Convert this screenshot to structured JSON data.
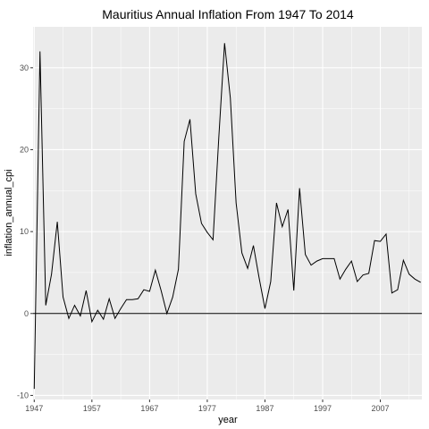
{
  "chart_data": {
    "type": "line",
    "title": "Mauritius Annual Inflation From 1947 To 2014",
    "xlabel": "year",
    "ylabel": "inflation_annual_cpi",
    "xlim": [
      1946.8,
      2014.2
    ],
    "ylim": [
      -10.5,
      35
    ],
    "x_ticks": [
      1947,
      1957,
      1967,
      1977,
      1987,
      1997,
      2007
    ],
    "y_ticks": [
      -10,
      0,
      10,
      20,
      30
    ],
    "x_tick_labels": [
      "1947",
      "1957",
      "1967",
      "1977",
      "1987",
      "1997",
      "2007"
    ],
    "y_tick_labels": [
      "-10",
      "0",
      "10",
      "20",
      "30"
    ],
    "reference_line_y": 0,
    "grid": true,
    "colors": {
      "panel": "#ebebeb",
      "grid": "#ffffff",
      "line": "#000000",
      "ticks": "#4d4d4d"
    },
    "series": [
      {
        "x": [
          1947,
          1948,
          1949,
          1950,
          1951,
          1952,
          1953,
          1954,
          1955,
          1956,
          1957,
          1958,
          1959,
          1960,
          1961,
          1962,
          1963,
          1964,
          1965,
          1966,
          1967,
          1968,
          1969,
          1970,
          1971,
          1972,
          1973,
          1974,
          1975,
          1976,
          1977,
          1978,
          1979,
          1980,
          1981,
          1982,
          1983,
          1984,
          1985,
          1986,
          1987,
          1988,
          1989,
          1990,
          1991,
          1992,
          1993,
          1994,
          1995,
          1996,
          1997,
          1998,
          1999,
          2000,
          2001,
          2002,
          2003,
          2004,
          2005,
          2006,
          2007,
          2008,
          2009,
          2010,
          2011,
          2012,
          2013,
          2014
        ],
        "values": [
          -9.2,
          32.0,
          1.0,
          4.8,
          11.2,
          2.0,
          -0.6,
          1.0,
          -0.3,
          2.8,
          -1.0,
          0.4,
          -0.7,
          1.8,
          -0.6,
          0.6,
          1.7,
          1.7,
          1.8,
          2.9,
          2.7,
          5.3,
          2.8,
          0.0,
          2.0,
          5.4,
          21.0,
          23.7,
          14.6,
          11.0,
          9.9,
          9.0,
          21.5,
          33.0,
          26.3,
          13.5,
          7.4,
          5.5,
          8.3,
          4.3,
          0.6,
          3.9,
          13.5,
          10.6,
          12.7,
          2.8,
          15.3,
          7.2,
          5.9,
          6.4,
          6.7,
          6.7,
          6.7,
          4.2,
          5.4,
          6.4,
          3.9,
          4.7,
          4.9,
          8.9,
          8.8,
          9.7,
          2.5,
          2.9,
          6.5,
          4.8,
          4.2,
          3.8
        ]
      }
    ]
  }
}
